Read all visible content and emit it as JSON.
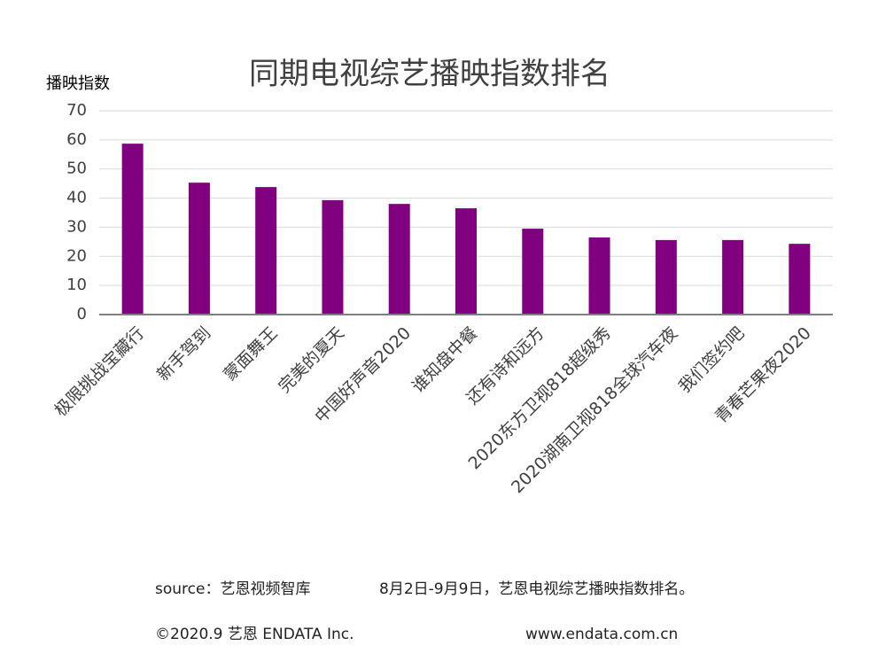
{
  "chart_data": {
    "type": "bar",
    "title": "同期电视综艺播映指数排名",
    "y_label": "播映指数",
    "categories": [
      "极限挑战宝藏行",
      "新手驾到",
      "蒙面舞王",
      "完美的夏天",
      "中国好声音2020",
      "谁知盘中餐",
      "还有诗和远方",
      "2020东方卫视818超级秀",
      "2020湖南卫视818全球汽车夜",
      "我们签约吧",
      "青春芒果夜2020"
    ],
    "values": [
      58.7,
      45.3,
      43.8,
      39.3,
      38.0,
      36.5,
      29.5,
      26.5,
      25.6,
      25.6,
      24.3
    ],
    "color": "#800080",
    "ylim": [
      0,
      70
    ],
    "yticks": [
      0,
      10,
      20,
      30,
      40,
      50,
      60,
      70
    ],
    "grid": true,
    "source": "source：艺恩视频智库",
    "note": "8月2日-9月9日，艺恩电视综艺播映指数排名。",
    "copyright": "©2020.9 艺恩 ENDATA Inc.",
    "website": "www.endata.com.cn"
  }
}
